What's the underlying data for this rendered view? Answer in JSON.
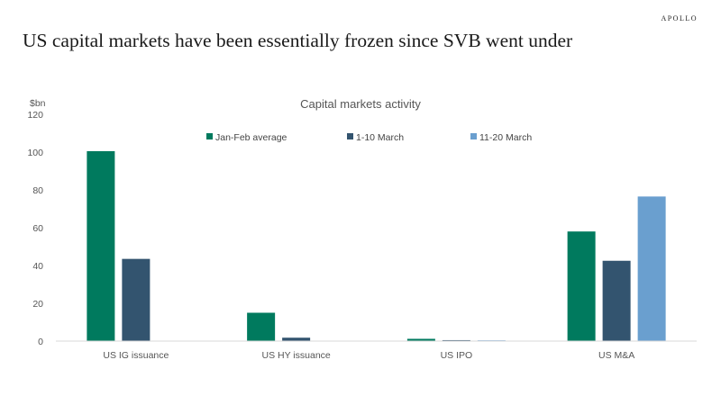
{
  "brand": "APOLLO",
  "headline": "US capital markets have been essentially frozen since SVB went under",
  "chart_data": {
    "type": "bar",
    "title": "Capital markets activity",
    "unit_label": "$bn",
    "xlabel": "",
    "ylabel": "",
    "ylim": [
      0,
      120
    ],
    "yticks": [
      0,
      20,
      40,
      60,
      80,
      100,
      120
    ],
    "grid": false,
    "legend_position": "top",
    "categories": [
      "US IG issuance",
      "US HY issuance",
      "US IPO",
      "US M&A"
    ],
    "series": [
      {
        "name": "Jan-Feb average",
        "color": "#007a5e",
        "values": [
          100.5,
          15,
          1.2,
          58
        ]
      },
      {
        "name": "1-10 March",
        "color": "#33546f",
        "values": [
          43.5,
          1.8,
          0.5,
          42.5
        ]
      },
      {
        "name": "11-20 March",
        "color": "#6a9fcf",
        "values": [
          0,
          0,
          0.4,
          76.5
        ]
      }
    ]
  }
}
